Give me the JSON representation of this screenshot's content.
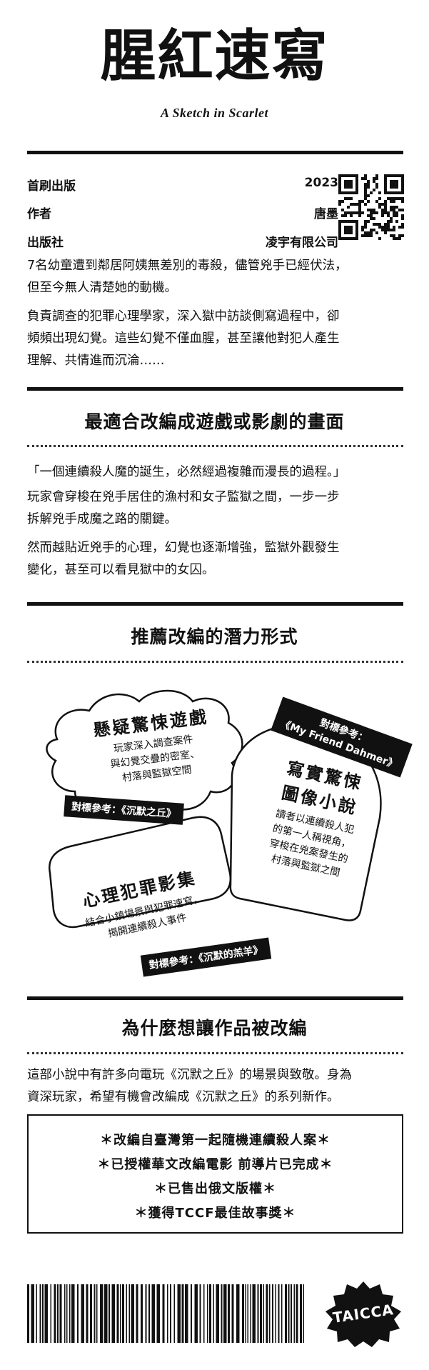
{
  "header": {
    "title": "腥紅速寫",
    "subtitle": "A Sketch in Scarlet"
  },
  "meta": {
    "rows": [
      {
        "label": "首刷出版",
        "value": "2023"
      },
      {
        "label": "作者",
        "value": "唐墨"
      },
      {
        "label": "出版社",
        "value": "凌宇有限公司"
      }
    ]
  },
  "synopsis": {
    "p1_line1": "7名幼童遭到鄰居阿姨無差別的毒殺，儘管兇手已經伏法，",
    "p1_line2": "但至今無人清楚她的動機。",
    "p2_line1": "負責調查的犯罪心理學家，深入獄中訪談側寫過程中，卻",
    "p2_line2": "頻頻出現幻覺。這些幻覺不僅血腥，甚至讓他對犯人產生",
    "p2_line3": "理解、共情進而沉淪……"
  },
  "section1": {
    "heading": "最適合改編成遊戲或影劇的畫面",
    "quote": "「一個連續殺人魔的誕生，必然經過複雜而漫長的過程。」",
    "p1_line1": "玩家會穿梭在兇手居住的漁村和女子監獄之間，一步一步",
    "p1_line2": "拆解兇手成魔之路的關鍵。",
    "p2_line1": "然而越貼近兇手的心理，幻覺也逐漸增強，監獄外觀發生",
    "p2_line2": "變化，甚至可以看見獄中的女囚。"
  },
  "section2": {
    "heading": "推薦改編的潛力形式",
    "game": {
      "title": "懸疑驚悚遊戲",
      "line1": "玩家深入調查案件",
      "line2": "與幻覺交疊的密室、",
      "line3": "村落與監獄空間",
      "tag": "對標參考：《沉默之丘》"
    },
    "comic": {
      "tag_line1": "對標參考：",
      "tag_line2": "《My Friend Dahmer》",
      "title_line1": "寫實驚悚",
      "title_line2": "圖像小說",
      "line1": "讀者以連續殺人犯",
      "line2": "的第一人稱視角，",
      "line3": "穿梭在兇案發生的",
      "line4": "村落與監獄之間"
    },
    "series": {
      "title": "心理犯罪影集",
      "line1": "結合小鎮場景與犯罪速寫，",
      "line2": "揭開連續殺人事件",
      "tag": "對標參考：《沉默的羔羊》"
    }
  },
  "section3": {
    "heading": "為什麼想讓作品被改編",
    "line1": "這部小說中有許多向電玩《沉默之丘》的場景與致敬。身為",
    "line2": "資深玩家，希望有機會改編成《沉默之丘》的系列新作。"
  },
  "highlights": [
    "＊改編自臺灣第一起隨機連續殺人案＊",
    "＊已授權華文改編電影 前導片已完成＊",
    "＊已售出俄文版權＊",
    "＊獲得TCCF最佳故事獎＊"
  ],
  "footer": {
    "logo": "TAICCA"
  }
}
